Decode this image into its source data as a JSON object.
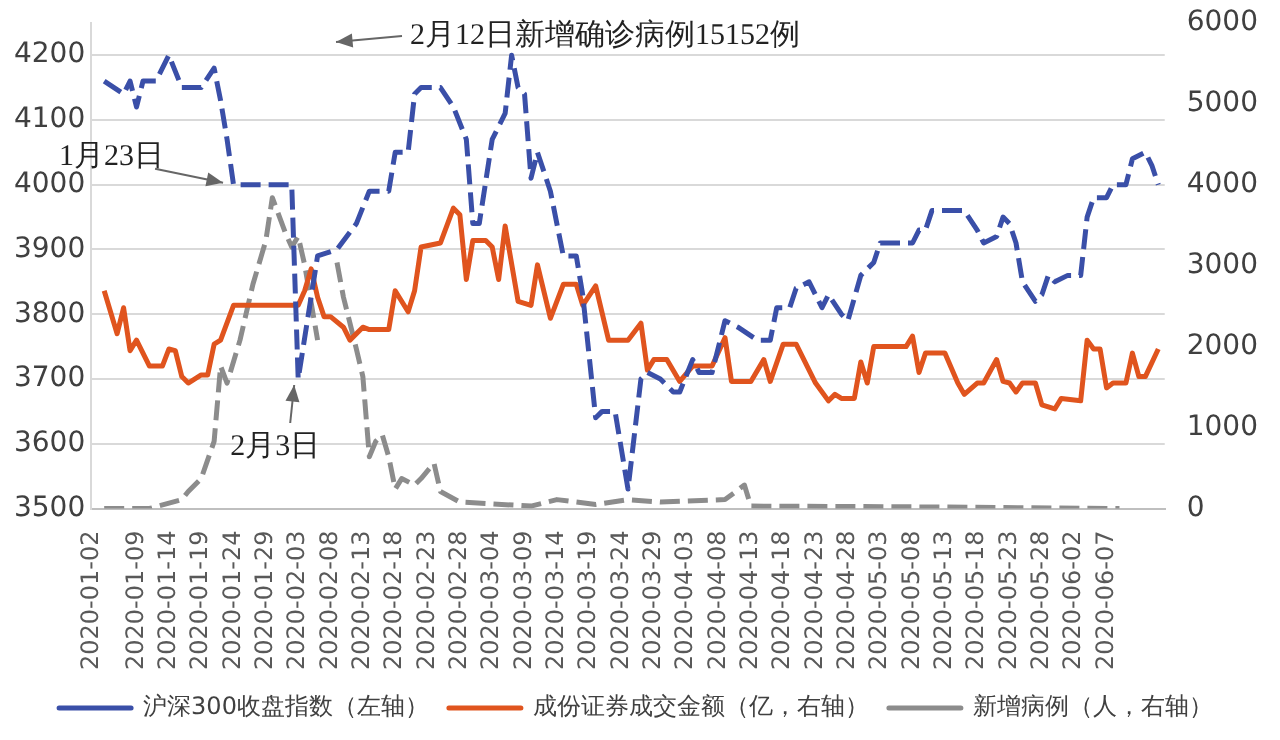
{
  "chart_data": {
    "type": "line",
    "annotations": [
      {
        "text": "1月23日",
        "x": "2020-01-23",
        "y": 4000
      },
      {
        "text": "2月3日",
        "x": "2020-02-03",
        "y": 3700
      },
      "2月12日新增确诊病例15152例"
    ],
    "xlim": [
      "2020-01-02",
      "2020-06-16"
    ],
    "xticks": [
      "2020-01-02",
      "2020-01-09",
      "2020-01-14",
      "2020-01-19",
      "2020-01-24",
      "2020-01-29",
      "2020-02-03",
      "2020-02-08",
      "2020-02-13",
      "2020-02-18",
      "2020-02-23",
      "2020-02-28",
      "2020-03-04",
      "2020-03-09",
      "2020-03-14",
      "2020-03-19",
      "2020-03-24",
      "2020-03-29",
      "2020-04-03",
      "2020-04-08",
      "2020-04-13",
      "2020-04-18",
      "2020-04-23",
      "2020-04-28",
      "2020-05-03",
      "2020-05-08",
      "2020-05-13",
      "2020-05-18",
      "2020-05-23",
      "2020-05-28",
      "2020-06-02",
      "2020-06-07"
    ],
    "ylim": [
      3500,
      4250
    ],
    "yticks": [
      3500,
      3600,
      3700,
      3800,
      3900,
      4000,
      4100,
      4200
    ],
    "y2lim": [
      0,
      6000
    ],
    "y2ticks": [
      0,
      1000,
      2000,
      3000,
      4000,
      5000,
      6000
    ],
    "grid": "y",
    "legend": "bottom",
    "marker": "none",
    "series": [
      {
        "name": "沪深300收盘指数（左轴）",
        "color": "#3a4fa8",
        "line_style": "dashed",
        "x": [
          "2020-01-04",
          "2020-01-07",
          "2020-01-08",
          "2020-01-09",
          "2020-01-10",
          "2020-01-12",
          "2020-01-14",
          "2020-01-16",
          "2020-01-19",
          "2020-01-21",
          "2020-01-22",
          "2020-01-23",
          "2020-01-24",
          "2020-02-02",
          "2020-02-03",
          "2020-02-06",
          "2020-02-09",
          "2020-02-12",
          "2020-02-14",
          "2020-02-17",
          "2020-02-18",
          "2020-02-20",
          "2020-02-21",
          "2020-02-22",
          "2020-02-25",
          "2020-02-27",
          "2020-02-29",
          "2020-03-01",
          "2020-03-02",
          "2020-03-04",
          "2020-03-06",
          "2020-03-07",
          "2020-03-08",
          "2020-03-09",
          "2020-03-10",
          "2020-03-11",
          "2020-03-13",
          "2020-03-15",
          "2020-03-17",
          "2020-03-18",
          "2020-03-20",
          "2020-03-21",
          "2020-03-23",
          "2020-03-25",
          "2020-03-27",
          "2020-03-28",
          "2020-03-30",
          "2020-04-01",
          "2020-04-02",
          "2020-04-04",
          "2020-04-05",
          "2020-04-07",
          "2020-04-09",
          "2020-04-11",
          "2020-04-14",
          "2020-04-16",
          "2020-04-17",
          "2020-04-19",
          "2020-04-20",
          "2020-04-22",
          "2020-04-24",
          "2020-04-25",
          "2020-04-27",
          "2020-04-28",
          "2020-04-30",
          "2020-05-02",
          "2020-05-03",
          "2020-05-08",
          "2020-05-09",
          "2020-05-10",
          "2020-05-11",
          "2020-05-14",
          "2020-05-16",
          "2020-05-18",
          "2020-05-19",
          "2020-05-21",
          "2020-05-22",
          "2020-05-23",
          "2020-05-24",
          "2020-05-25",
          "2020-05-27",
          "2020-05-28",
          "2020-05-29",
          "2020-05-30",
          "2020-06-01",
          "2020-06-03",
          "2020-06-04",
          "2020-06-05",
          "2020-06-07",
          "2020-06-08",
          "2020-06-10",
          "2020-06-11",
          "2020-06-13",
          "2020-06-14",
          "2020-06-15"
        ],
        "values": [
          4160,
          4140,
          4160,
          4120,
          4160,
          4160,
          4200,
          4150,
          4150,
          4180,
          4130,
          4070,
          4000,
          4000,
          3700,
          3890,
          3900,
          3940,
          3990,
          3990,
          4050,
          4050,
          4140,
          4150,
          4150,
          4120,
          4070,
          3940,
          3940,
          4070,
          4110,
          4200,
          4150,
          4140,
          4010,
          4050,
          3990,
          3890,
          3890,
          3830,
          3640,
          3650,
          3650,
          3530,
          3700,
          3710,
          3700,
          3680,
          3680,
          3730,
          3710,
          3710,
          3790,
          3780,
          3760,
          3760,
          3810,
          3810,
          3840,
          3850,
          3810,
          3830,
          3800,
          3790,
          3860,
          3880,
          3910,
          3910,
          3930,
          3930,
          3960,
          3960,
          3960,
          3930,
          3910,
          3920,
          3950,
          3940,
          3910,
          3850,
          3820,
          3830,
          3860,
          3850,
          3860,
          3860,
          3950,
          3980,
          3980,
          4000,
          4000,
          4040,
          4050,
          4030,
          4000
        ]
      },
      {
        "name": "成份证券成交金额（亿，右轴）",
        "color": "#e0541e",
        "line_style": "solid",
        "axis": "y2",
        "x": [
          "2020-01-04",
          "2020-01-06",
          "2020-01-07",
          "2020-01-08",
          "2020-01-09",
          "2020-01-11",
          "2020-01-13",
          "2020-01-14",
          "2020-01-15",
          "2020-01-16",
          "2020-01-17",
          "2020-01-19",
          "2020-01-20",
          "2020-01-21",
          "2020-01-22",
          "2020-01-24",
          "2020-02-03",
          "2020-02-04",
          "2020-02-05",
          "2020-02-06",
          "2020-02-07",
          "2020-02-08",
          "2020-02-10",
          "2020-02-11",
          "2020-02-13",
          "2020-02-14",
          "2020-02-17",
          "2020-02-18",
          "2020-02-20",
          "2020-02-21",
          "2020-02-22",
          "2020-02-25",
          "2020-02-27",
          "2020-02-28",
          "2020-02-29",
          "2020-03-01",
          "2020-03-03",
          "2020-03-04",
          "2020-03-05",
          "2020-03-06",
          "2020-03-08",
          "2020-03-10",
          "2020-03-11",
          "2020-03-13",
          "2020-03-15",
          "2020-03-17",
          "2020-03-18",
          "2020-03-20",
          "2020-03-22",
          "2020-03-25",
          "2020-03-27",
          "2020-03-28",
          "2020-03-29",
          "2020-03-31",
          "2020-04-02",
          "2020-04-04",
          "2020-04-07",
          "2020-04-09",
          "2020-04-10",
          "2020-04-13",
          "2020-04-15",
          "2020-04-16",
          "2020-04-18",
          "2020-04-20",
          "2020-04-23",
          "2020-04-25",
          "2020-04-26",
          "2020-04-27",
          "2020-04-29",
          "2020-04-30",
          "2020-05-01",
          "2020-05-02",
          "2020-05-07",
          "2020-05-08",
          "2020-05-09",
          "2020-05-10",
          "2020-05-13",
          "2020-05-15",
          "2020-05-16",
          "2020-05-18",
          "2020-05-19",
          "2020-05-21",
          "2020-05-22",
          "2020-05-23",
          "2020-05-24",
          "2020-05-25",
          "2020-05-27",
          "2020-05-28",
          "2020-05-30",
          "2020-05-31",
          "2020-06-03",
          "2020-06-04",
          "2020-06-05",
          "2020-06-06",
          "2020-06-07",
          "2020-06-08",
          "2020-06-10",
          "2020-06-11",
          "2020-06-12",
          "2020-06-13",
          "2020-06-15"
        ],
        "values": [
          2690,
          2160,
          2480,
          1950,
          2080,
          1760,
          1760,
          1970,
          1950,
          1630,
          1550,
          1650,
          1650,
          2030,
          2080,
          2510,
          2510,
          2690,
          2960,
          2610,
          2370,
          2370,
          2240,
          2080,
          2240,
          2210,
          2210,
          2690,
          2430,
          2690,
          3230,
          3280,
          3710,
          3630,
          2830,
          3310,
          3310,
          3230,
          2830,
          3490,
          2560,
          2510,
          3010,
          2350,
          2770,
          2770,
          2510,
          2750,
          2080,
          2080,
          2290,
          1710,
          1840,
          1840,
          1570,
          1760,
          1760,
          2110,
          1570,
          1570,
          1840,
          1570,
          2030,
          2030,
          1550,
          1330,
          1410,
          1360,
          1360,
          1810,
          1550,
          2000,
          2000,
          2130,
          1680,
          1920,
          1920,
          1550,
          1410,
          1550,
          1550,
          1840,
          1570,
          1550,
          1440,
          1550,
          1550,
          1280,
          1230,
          1360,
          1330,
          2080,
          1970,
          1970,
          1490,
          1550,
          1550,
          1920,
          1630,
          1630,
          1970
        ]
      },
      {
        "name": "新增病例（人，右轴）",
        "color": "#8c8c8c",
        "line_style": "dashed",
        "axis": "y2",
        "x": [
          "2020-01-04",
          "2020-01-11",
          "2020-01-16",
          "2020-01-17",
          "2020-01-19",
          "2020-01-21",
          "2020-01-22",
          "2020-01-23",
          "2020-01-25",
          "2020-01-27",
          "2020-01-29",
          "2020-01-30",
          "2020-02-01",
          "2020-02-02",
          "2020-02-03",
          "2020-02-04",
          "2020-02-06",
          "2020-02-07",
          "2020-02-08",
          "2020-02-09",
          "2020-02-10",
          "2020-02-12",
          "2020-02-13",
          "2020-02-14",
          "2020-02-15",
          "2020-02-16",
          "2020-02-17",
          "2020-02-18",
          "2020-02-19",
          "2020-02-21",
          "2020-02-22",
          "2020-02-24",
          "2020-02-25",
          "2020-02-28",
          "2020-03-10",
          "2020-03-14",
          "2020-03-20",
          "2020-03-25",
          "2020-03-30",
          "2020-04-09",
          "2020-04-12",
          "2020-04-13",
          "2020-05-10",
          "2020-06-09"
        ],
        "values": [
          0,
          0,
          110,
          210,
          370,
          830,
          1760,
          1550,
          2080,
          2770,
          3310,
          3840,
          3410,
          3230,
          3360,
          3010,
          2080,
          null,
          null,
          3040,
          2610,
          1970,
          1630,
          640,
          830,
          910,
          640,
          240,
          370,
          290,
          370,
          560,
          210,
          80,
          30,
          110,
          50,
          110,
          80,
          110,
          290,
          30,
          20,
          0
        ]
      }
    ]
  }
}
